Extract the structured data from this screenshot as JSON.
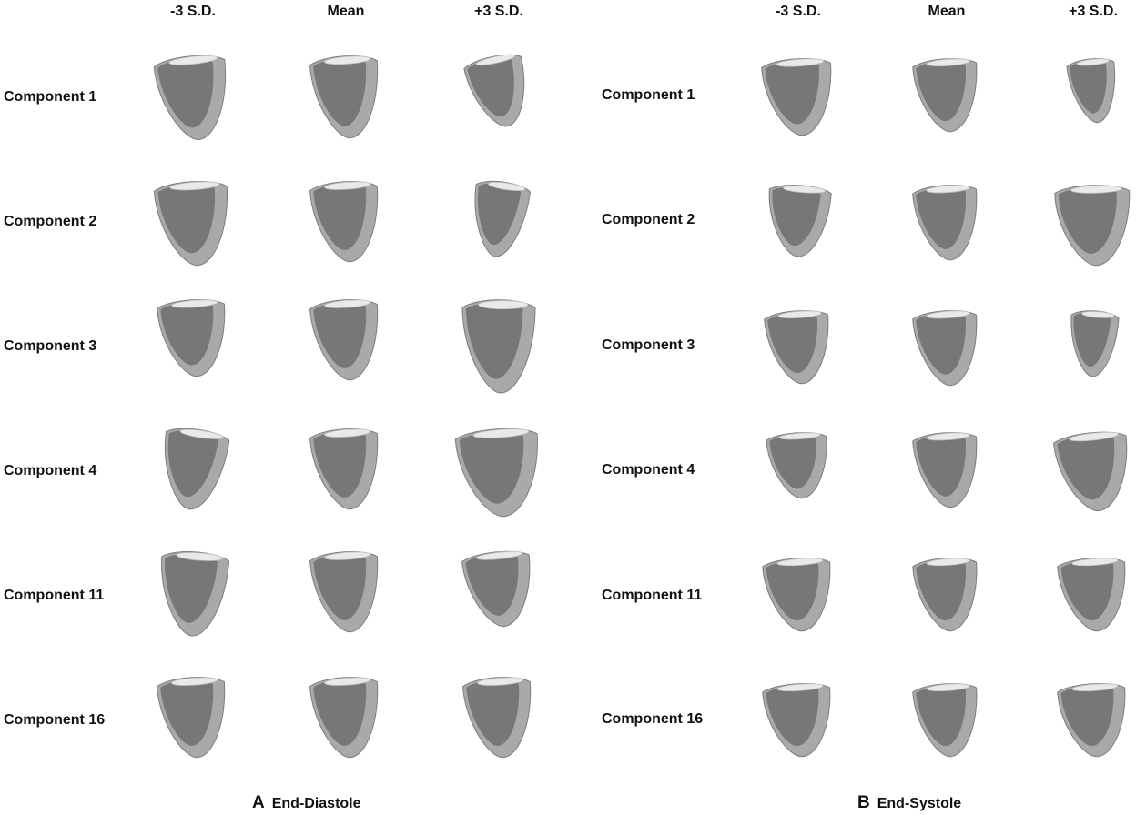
{
  "panels": [
    {
      "letter": "A",
      "title": "End-Diastole",
      "columns": [
        "-3 S.D.",
        "Mean",
        "+3 S.D."
      ],
      "rows": [
        "Component 1",
        "Component 2",
        "Component 3",
        "Component 4",
        "Component 11",
        "Component 16"
      ]
    },
    {
      "letter": "B",
      "title": "End-Systole",
      "columns": [
        "-3 S.D.",
        "Mean",
        "+3 S.D."
      ],
      "rows": [
        "Component 1",
        "Component 2",
        "Component 3",
        "Component 4",
        "Component 11",
        "Component 16"
      ]
    }
  ],
  "colors": {
    "epicardium": "#a9a9a9",
    "endocardium": "#6e6e6e",
    "base_rim": "#e9e9e9",
    "outline": "#7d7d7d"
  }
}
